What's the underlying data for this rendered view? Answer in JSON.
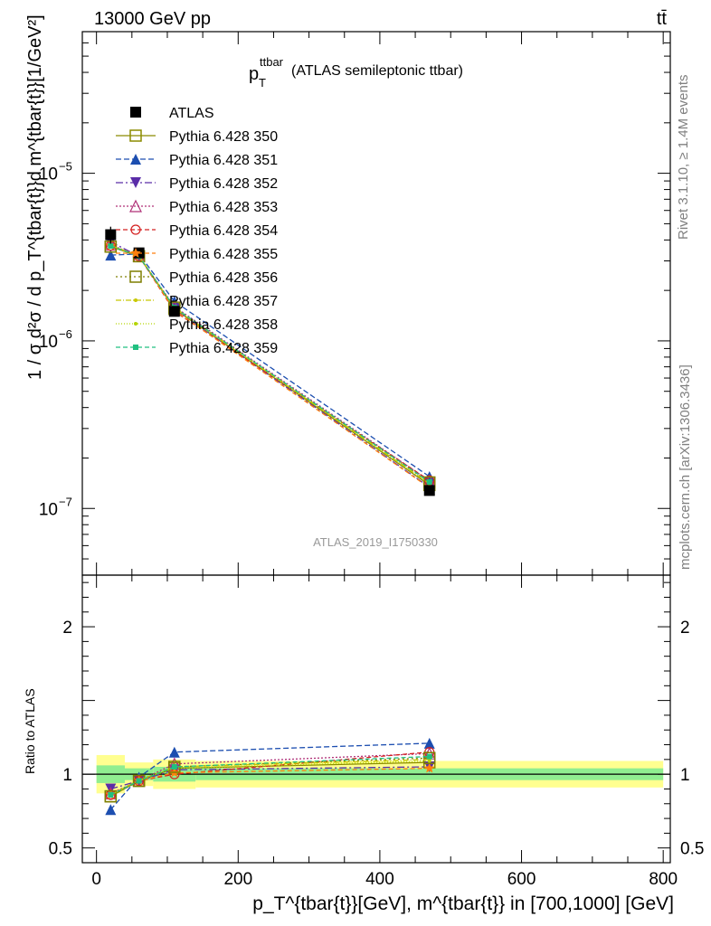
{
  "header": {
    "energy_label": "13000 GeV pp",
    "process_label": "tt̄"
  },
  "side_labels": {
    "rivet": "Rivet 3.1.10, ≥ 1.4M events",
    "mcplots": "mcplots.cern.ch [arXiv:1306.3436]"
  },
  "watermark": "ATLAS_2019_I1750330",
  "plot_title": {
    "main": "p",
    "sub": "T",
    "sup": "ttbar",
    "rest": " (ATLAS semileptonic ttbar)"
  },
  "colors": {
    "atlas": "#000000",
    "band_inner": "#90ee90",
    "band_outer": "#ffff90",
    "s350": "#8b8b00",
    "s351": "#1c4eb0",
    "s352": "#5a2da8",
    "s353": "#b03278",
    "s354": "#d42020",
    "s355": "#ff7f0e",
    "s356": "#7f7f00",
    "s357": "#c8c800",
    "s358": "#b4d400",
    "s359": "#20c080"
  },
  "chart_data": [
    {
      "type": "line",
      "panel": "main",
      "ylabel": "1 / σ d²σ / d p_T^{tbar{t}}d m^{tbar{t}}[1/GeV²]",
      "yscale": "log",
      "ylim": [
        4e-08,
        7e-05
      ],
      "xlim": [
        -20,
        810
      ],
      "y_ticks": [
        {
          "value": 1e-05,
          "label": "10",
          "exp": "−5"
        },
        {
          "value": 1e-06,
          "label": "10",
          "exp": "−6"
        },
        {
          "value": 1e-07,
          "label": "10",
          "exp": "−7"
        }
      ],
      "x": [
        20,
        60,
        110,
        470
      ],
      "series": [
        {
          "name": "ATLAS",
          "key": "atlas",
          "marker": "square-filled",
          "dash": "",
          "values": [
            4.3e-06,
            3.35e-06,
            1.5e-06,
            1.28e-07
          ],
          "errors": [
            5e-07,
            1.5e-07,
            9e-08,
            1.2e-09
          ]
        },
        {
          "name": "Pythia 6.428 350",
          "key": "s350",
          "marker": "square-open",
          "dash": "",
          "values": [
            3.65e-06,
            3.2e-06,
            1.55e-06,
            1.38e-07
          ]
        },
        {
          "name": "Pythia 6.428 351",
          "key": "s351",
          "marker": "triangle-up-filled",
          "dash": "6,3",
          "values": [
            3.25e-06,
            3.3e-06,
            1.72e-06,
            1.55e-07
          ]
        },
        {
          "name": "Pythia 6.428 352",
          "key": "s352",
          "marker": "triangle-down-filled",
          "dash": "8,3,2,3",
          "values": [
            3.9e-06,
            3.2e-06,
            1.55e-06,
            1.34e-07
          ]
        },
        {
          "name": "Pythia 6.428 353",
          "key": "s353",
          "marker": "triangle-up-open",
          "dash": "2,2",
          "values": [
            3.75e-06,
            3.2e-06,
            1.6e-06,
            1.46e-07
          ]
        },
        {
          "name": "Pythia 6.428 354",
          "key": "s354",
          "marker": "circle-open",
          "dash": "5,3",
          "values": [
            3.7e-06,
            3.2e-06,
            1.5e-06,
            1.47e-07
          ]
        },
        {
          "name": "Pythia 6.428 355",
          "key": "s355",
          "marker": "star",
          "dash": "5,3",
          "values": [
            3.7e-06,
            3.2e-06,
            1.52e-06,
            1.33e-07
          ]
        },
        {
          "name": "Pythia 6.428 356",
          "key": "s356",
          "marker": "square-open",
          "dash": "2,3",
          "values": [
            3.65e-06,
            3.2e-06,
            1.58e-06,
            1.43e-07
          ]
        },
        {
          "name": "Pythia 6.428 357",
          "key": "s357",
          "marker": "dot",
          "dash": "6,2,1,2",
          "values": [
            3.7e-06,
            3.22e-06,
            1.57e-06,
            1.41e-07
          ]
        },
        {
          "name": "Pythia 6.428 358",
          "key": "s358",
          "marker": "dot",
          "dash": "1,2",
          "values": [
            3.7e-06,
            3.22e-06,
            1.56e-06,
            1.4e-07
          ]
        },
        {
          "name": "Pythia 6.428 359",
          "key": "s359",
          "marker": "square-small",
          "dash": "5,3",
          "values": [
            3.68e-06,
            3.2e-06,
            1.58e-06,
            1.44e-07
          ]
        }
      ]
    },
    {
      "type": "line",
      "panel": "ratio",
      "ylabel": "Ratio to ATLAS",
      "xlabel": "p_T^{tbar{t}}[GeV], m^{tbar{t}} in [700,1000] [GeV]",
      "ylim": [
        0.4,
        2.35
      ],
      "xlim": [
        -20,
        810
      ],
      "y_ticks": [
        0.5,
        1,
        2
      ],
      "y_tick_labels": [
        "0.5",
        "1",
        "2"
      ],
      "x_ticks": [
        0,
        200,
        400,
        600,
        800
      ],
      "x_tick_labels": [
        "0",
        "200",
        "400",
        "600",
        "800"
      ],
      "bins": [
        [
          0,
          40
        ],
        [
          40,
          80
        ],
        [
          80,
          140
        ],
        [
          140,
          800
        ]
      ],
      "band_inner": [
        [
          0.94,
          1.06
        ],
        [
          0.96,
          1.04
        ],
        [
          0.95,
          1.05
        ],
        [
          0.96,
          1.04
        ]
      ],
      "band_outer": [
        [
          0.87,
          1.13
        ],
        [
          0.92,
          1.08
        ],
        [
          0.9,
          1.1
        ],
        [
          0.91,
          1.09
        ]
      ],
      "x": [
        20,
        60,
        110,
        470
      ],
      "series": [
        {
          "name": "Pythia 6.428 350",
          "key": "s350",
          "values": [
            0.85,
            0.955,
            1.04,
            1.08
          ]
        },
        {
          "name": "Pythia 6.428 351",
          "key": "s351",
          "values": [
            0.76,
            0.98,
            1.15,
            1.21
          ]
        },
        {
          "name": "Pythia 6.428 352",
          "key": "s352",
          "values": [
            0.9,
            0.955,
            1.03,
            1.05
          ]
        },
        {
          "name": "Pythia 6.428 353",
          "key": "s353",
          "values": [
            0.87,
            0.955,
            1.07,
            1.14
          ]
        },
        {
          "name": "Pythia 6.428 354",
          "key": "s354",
          "values": [
            0.86,
            0.955,
            1.0,
            1.15
          ]
        },
        {
          "name": "Pythia 6.428 355",
          "key": "s355",
          "values": [
            0.86,
            0.955,
            1.01,
            1.04
          ]
        },
        {
          "name": "Pythia 6.428 356",
          "key": "s356",
          "values": [
            0.85,
            0.955,
            1.05,
            1.11
          ]
        },
        {
          "name": "Pythia 6.428 357",
          "key": "s357",
          "values": [
            0.86,
            0.96,
            1.05,
            1.1
          ]
        },
        {
          "name": "Pythia 6.428 358",
          "key": "s358",
          "values": [
            0.86,
            0.96,
            1.04,
            1.09
          ]
        },
        {
          "name": "Pythia 6.428 359",
          "key": "s359",
          "values": [
            0.86,
            0.955,
            1.05,
            1.12
          ]
        }
      ]
    }
  ]
}
